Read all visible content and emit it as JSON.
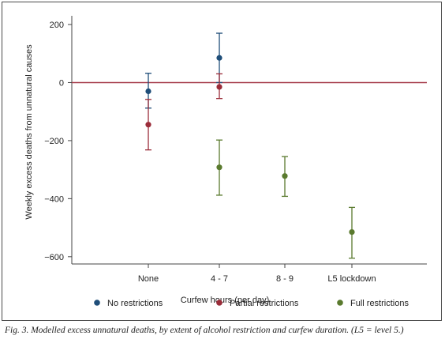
{
  "chart_data": {
    "type": "scatter",
    "subtype": "point-with-error-bars",
    "xlabel": "Curfew hours (per day)",
    "ylabel": "Weekly excess deaths from unnatural causes",
    "categories": [
      "None",
      "4 - 7",
      "8 - 9",
      "L5 lockdown"
    ],
    "yticks": [
      200,
      0,
      -200,
      -400,
      -600
    ],
    "ytick_labels": [
      "200",
      "0",
      "−200",
      "−400",
      "−600"
    ],
    "ylim": [
      -625,
      230
    ],
    "reference_line": 0,
    "grid": false,
    "legend_position": "bottom",
    "series": [
      {
        "name": "No restrictions",
        "color": "#1f4e79",
        "points": [
          {
            "category": "None",
            "y": -30,
            "low": -88,
            "high": 32
          },
          {
            "category": "4 - 7",
            "y": 85,
            "low": 0,
            "high": 170
          }
        ]
      },
      {
        "name": "Partial restrictions",
        "color": "#9b2d3a",
        "points": [
          {
            "category": "None",
            "y": -145,
            "low": -232,
            "high": -58
          },
          {
            "category": "4 - 7",
            "y": -15,
            "low": -55,
            "high": 30
          }
        ]
      },
      {
        "name": "Full restrictions",
        "color": "#5a7a2e",
        "points": [
          {
            "category": "4 - 7",
            "y": -292,
            "low": -388,
            "high": -198
          },
          {
            "category": "8 - 9",
            "y": -322,
            "low": -392,
            "high": -255
          },
          {
            "category": "L5 lockdown",
            "y": -515,
            "low": -605,
            "high": -430
          }
        ]
      }
    ]
  },
  "caption": "Fig. 3. Modelled excess unnatural deaths, by extent of alcohol restriction and curfew duration. (L5 = level 5.)",
  "colors": {
    "reference_line": "#a63a4a",
    "axis": "#444444"
  }
}
